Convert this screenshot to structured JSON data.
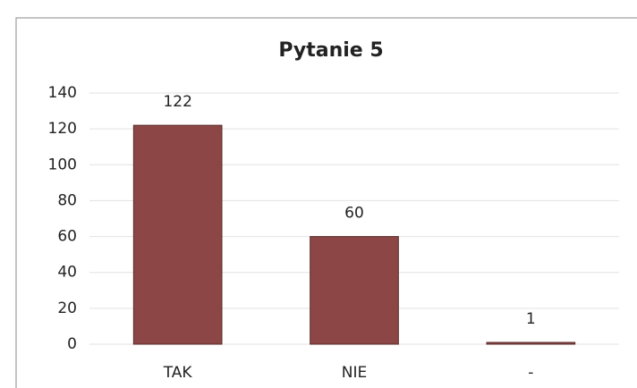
{
  "chart_data": {
    "type": "bar",
    "title": "Pytanie 5",
    "categories": [
      "TAK",
      "NIE",
      "-"
    ],
    "values": [
      122,
      60,
      1
    ],
    "color": "#8c4646",
    "ylim": [
      0,
      140
    ],
    "yticks": [
      0,
      20,
      40,
      60,
      80,
      100,
      120,
      140
    ],
    "grid": true
  }
}
